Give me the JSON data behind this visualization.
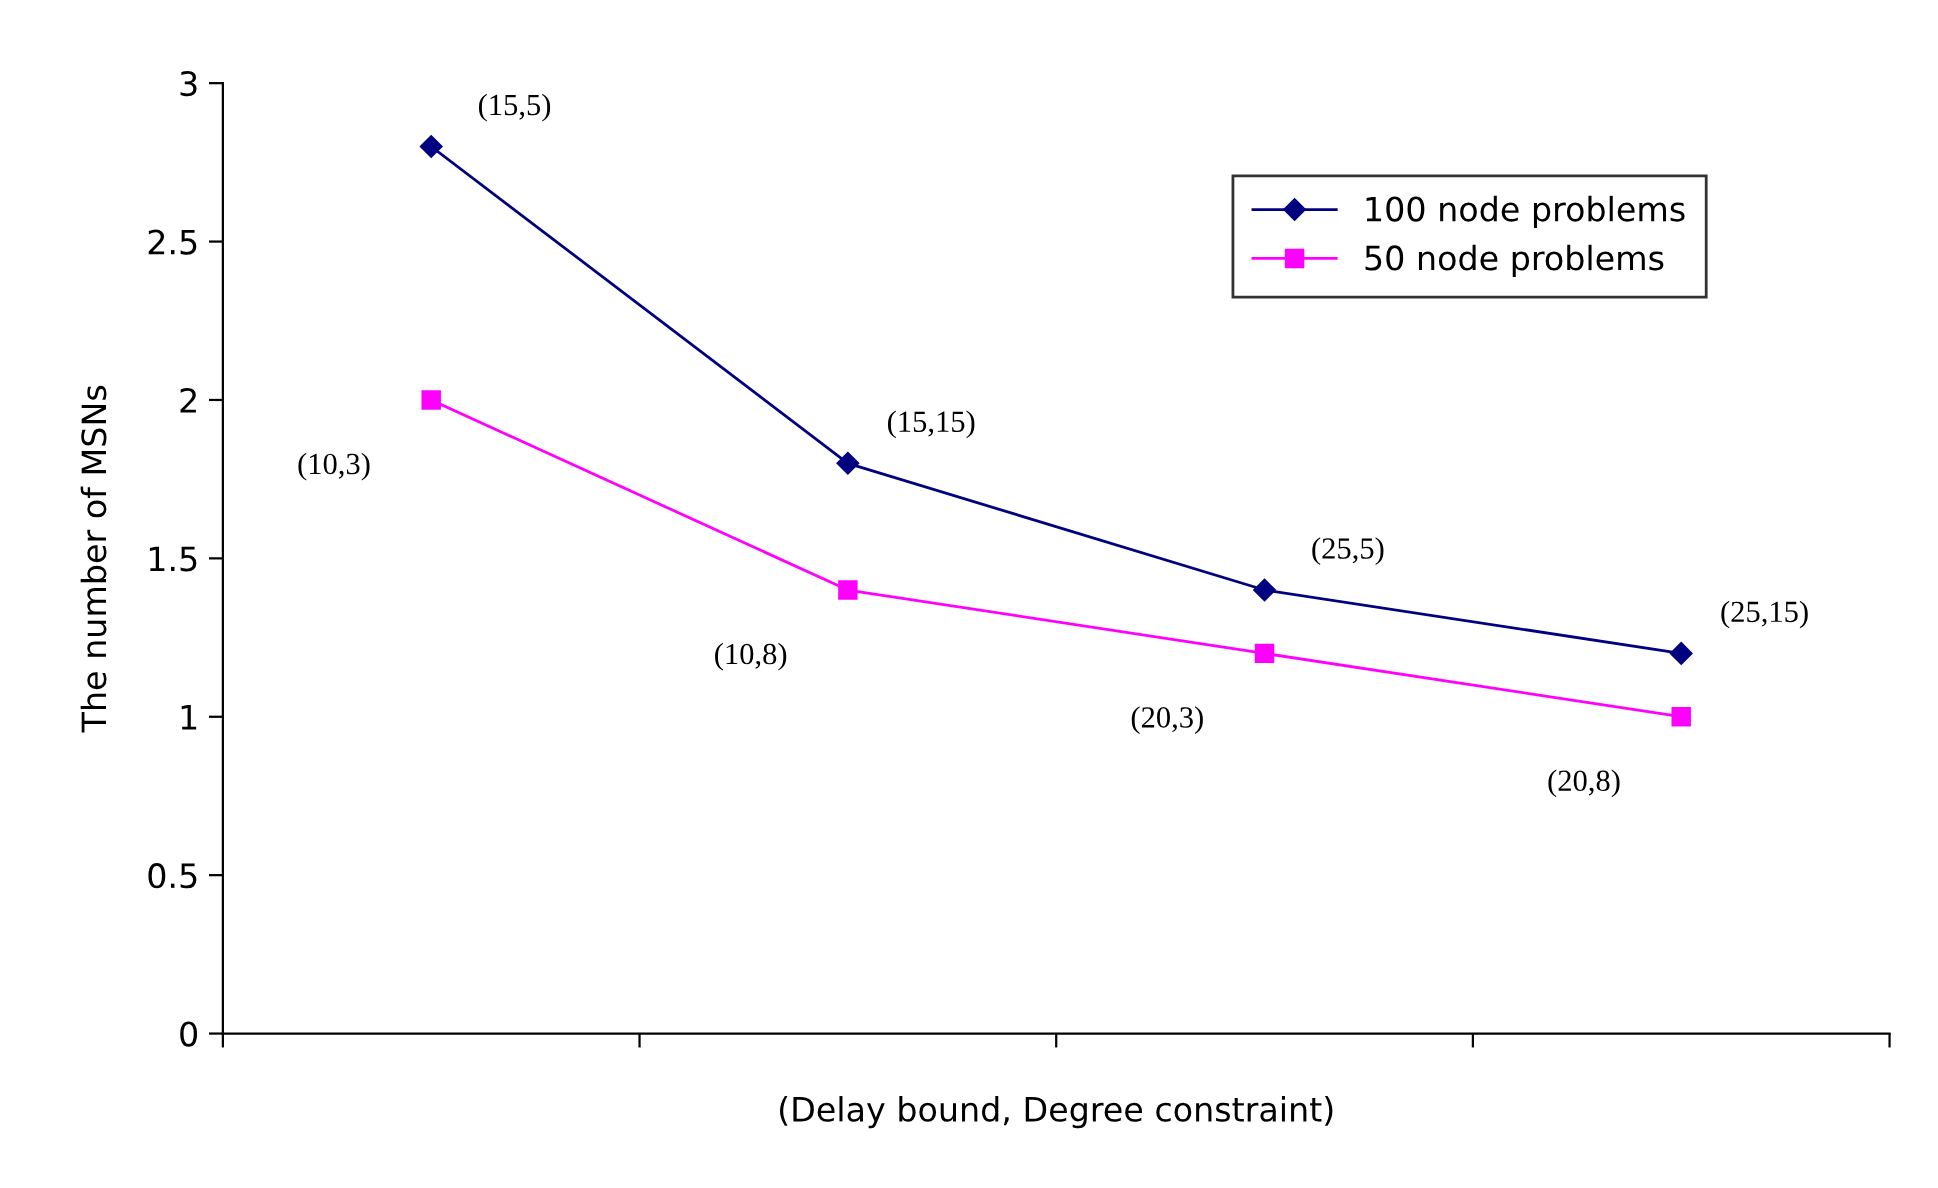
{
  "chart_data": {
    "type": "line",
    "ylabel": "The number of MSNs",
    "xlabel": "(Delay bound, Degree constraint)",
    "categories": [
      null,
      null,
      null,
      null
    ],
    "series": [
      {
        "name": "100 node problems",
        "color": "#000080",
        "marker": "diamond",
        "values": [
          2.8,
          1.8,
          1.4,
          1.2
        ]
      },
      {
        "name": "50 node problems",
        "color": "#ff00ff",
        "marker": "square",
        "values": [
          2.0,
          1.4,
          1.2,
          1.0
        ]
      }
    ],
    "annotations": [
      "(15,5)",
      "(15,15)",
      "(25,5)",
      "(25,15)",
      "(10,3)",
      "(10,8)",
      "(20,3)",
      "(20,8)"
    ],
    "ylim": [
      0,
      3
    ],
    "yticks": [
      0,
      0.5,
      1,
      1.5,
      2,
      2.5,
      3
    ],
    "grid": false,
    "legend": "top right",
    "line_style": "solid"
  }
}
